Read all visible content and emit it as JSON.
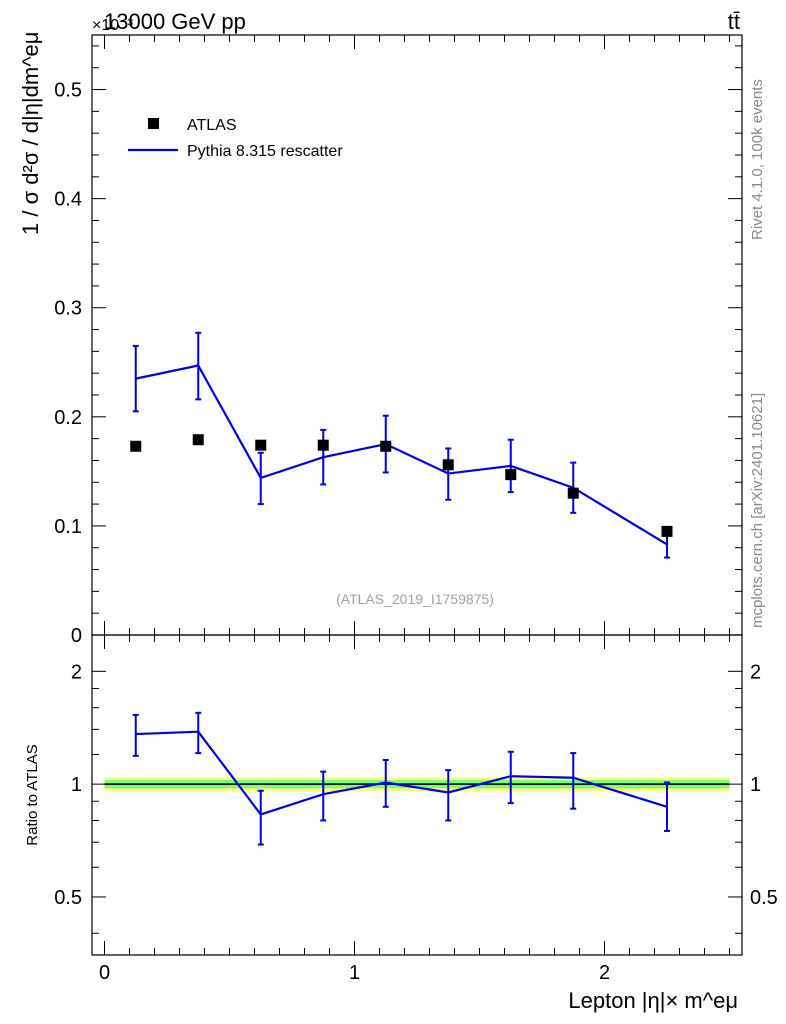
{
  "header": {
    "energy_label": "13000 GeV pp",
    "process_label": "tt̄",
    "exponent_label": "×10⁻³"
  },
  "side_labels": {
    "rivet": "Rivet 4.1.0,  100k events",
    "mcplots": "mcplots.cern.ch [arXiv:2401.10621]"
  },
  "analysis_id": "(ATLAS_2019_I1759875)",
  "colors": {
    "data": "#000000",
    "mc": "#0000e0",
    "band_inner": "#7cfc7c",
    "band_outer": "#ffff80"
  },
  "chart_data": [
    {
      "type": "line",
      "panel": "main",
      "ylabel": "1 / σ  d²σ / d|η|dm^eμ",
      "ylim": [
        0,
        0.55
      ],
      "yticks": [
        {
          "v": 0,
          "label": "0"
        },
        {
          "v": 0.1,
          "label": "0.1"
        },
        {
          "v": 0.2,
          "label": "0.2"
        },
        {
          "v": 0.3,
          "label": "0.3"
        },
        {
          "v": 0.4,
          "label": "0.4"
        },
        {
          "v": 0.5,
          "label": "0.5"
        }
      ],
      "xlim": [
        -0.05,
        2.55
      ],
      "x_edges": [
        0,
        0.25,
        0.5,
        0.75,
        1.0,
        1.25,
        1.5,
        1.75,
        2.0,
        2.5
      ],
      "x": [
        0.125,
        0.375,
        0.625,
        0.875,
        1.125,
        1.375,
        1.625,
        1.875,
        2.25
      ],
      "series": [
        {
          "name": "ATLAS",
          "style": "markers",
          "values": [
            0.173,
            0.179,
            0.174,
            0.174,
            0.173,
            0.156,
            0.147,
            0.13,
            0.095
          ]
        },
        {
          "name": "Pythia 8.315 rescatter",
          "style": "line",
          "values": [
            0.235,
            0.247,
            0.144,
            0.163,
            0.175,
            0.148,
            0.155,
            0.135,
            0.083
          ],
          "err_low": [
            0.205,
            0.216,
            0.12,
            0.138,
            0.149,
            0.124,
            0.131,
            0.112,
            0.071
          ],
          "err_high": [
            0.265,
            0.277,
            0.167,
            0.188,
            0.201,
            0.171,
            0.179,
            0.158,
            0.096
          ]
        }
      ],
      "legend": [
        {
          "label": "ATLAS",
          "kind": "marker"
        },
        {
          "label": "Pythia 8.315 rescatter",
          "kind": "line"
        }
      ]
    },
    {
      "type": "line",
      "panel": "ratio",
      "ylabel": "Ratio to ATLAS",
      "xlabel": "Lepton |η|× m^eμ",
      "yscale": "log",
      "ylim": [
        0.35,
        2.5
      ],
      "yticks": [
        {
          "v": 0.5,
          "label": "0.5"
        },
        {
          "v": 1,
          "label": "1"
        },
        {
          "v": 2,
          "label": "2"
        }
      ],
      "xticks": [
        {
          "v": 0,
          "label": "0"
        },
        {
          "v": 1,
          "label": "1"
        },
        {
          "v": 2,
          "label": "2"
        }
      ],
      "x": [
        0.125,
        0.375,
        0.625,
        0.875,
        1.125,
        1.375,
        1.625,
        1.875,
        2.25
      ],
      "band_inner": [
        0.975,
        1.025
      ],
      "band_outer": [
        0.955,
        1.045
      ],
      "series": [
        {
          "name": "Pythia 8.315 rescatter",
          "values": [
            1.36,
            1.38,
            0.83,
            0.94,
            1.01,
            0.95,
            1.05,
            1.04,
            0.87
          ],
          "err_low": [
            1.19,
            1.21,
            0.69,
            0.8,
            0.87,
            0.8,
            0.89,
            0.86,
            0.75
          ],
          "err_high": [
            1.53,
            1.55,
            0.96,
            1.08,
            1.16,
            1.09,
            1.22,
            1.21,
            1.01
          ]
        }
      ]
    }
  ]
}
